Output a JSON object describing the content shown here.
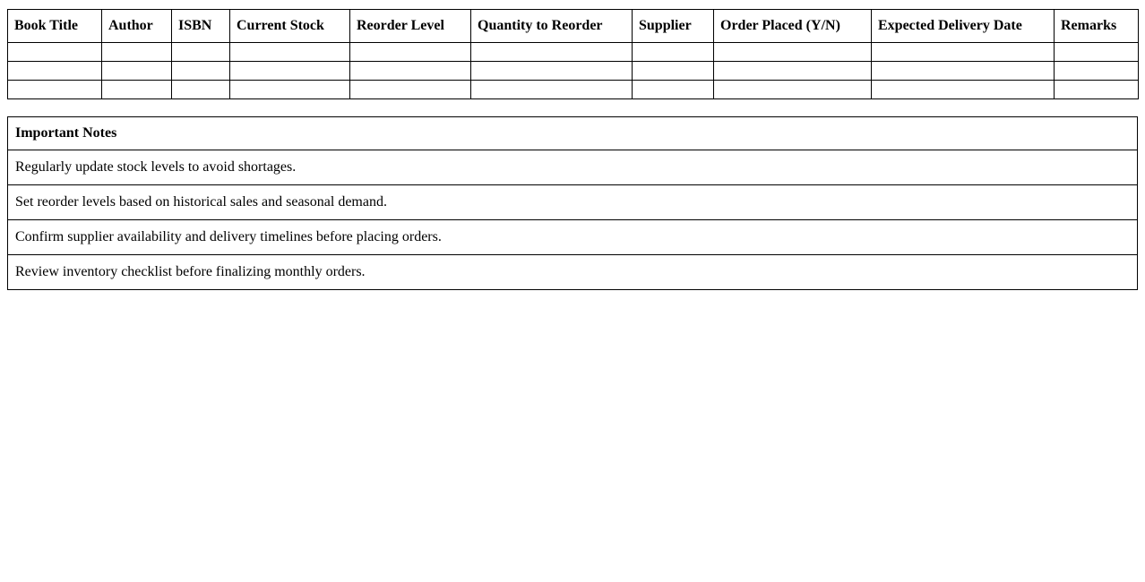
{
  "inventory_table": {
    "columns": [
      "Book Title",
      "Author",
      "ISBN",
      "Current Stock",
      "Reorder Level",
      "Quantity to Reorder",
      "Supplier",
      "Order Placed (Y/N)",
      "Expected Delivery Date",
      "Remarks"
    ],
    "rows": [
      [
        "",
        "",
        "",
        "",
        "",
        "",
        "",
        "",
        "",
        ""
      ],
      [
        "",
        "",
        "",
        "",
        "",
        "",
        "",
        "",
        "",
        ""
      ],
      [
        "",
        "",
        "",
        "",
        "",
        "",
        "",
        "",
        "",
        ""
      ]
    ]
  },
  "notes_table": {
    "header": "Important Notes",
    "notes": [
      "Regularly update stock levels to avoid shortages.",
      "Set reorder levels based on historical sales and seasonal demand.",
      "Confirm supplier availability and delivery timelines before placing orders.",
      "Review inventory checklist before finalizing monthly orders."
    ]
  },
  "colors": {
    "border": "#000000",
    "text": "#000000",
    "background": "#ffffff"
  }
}
